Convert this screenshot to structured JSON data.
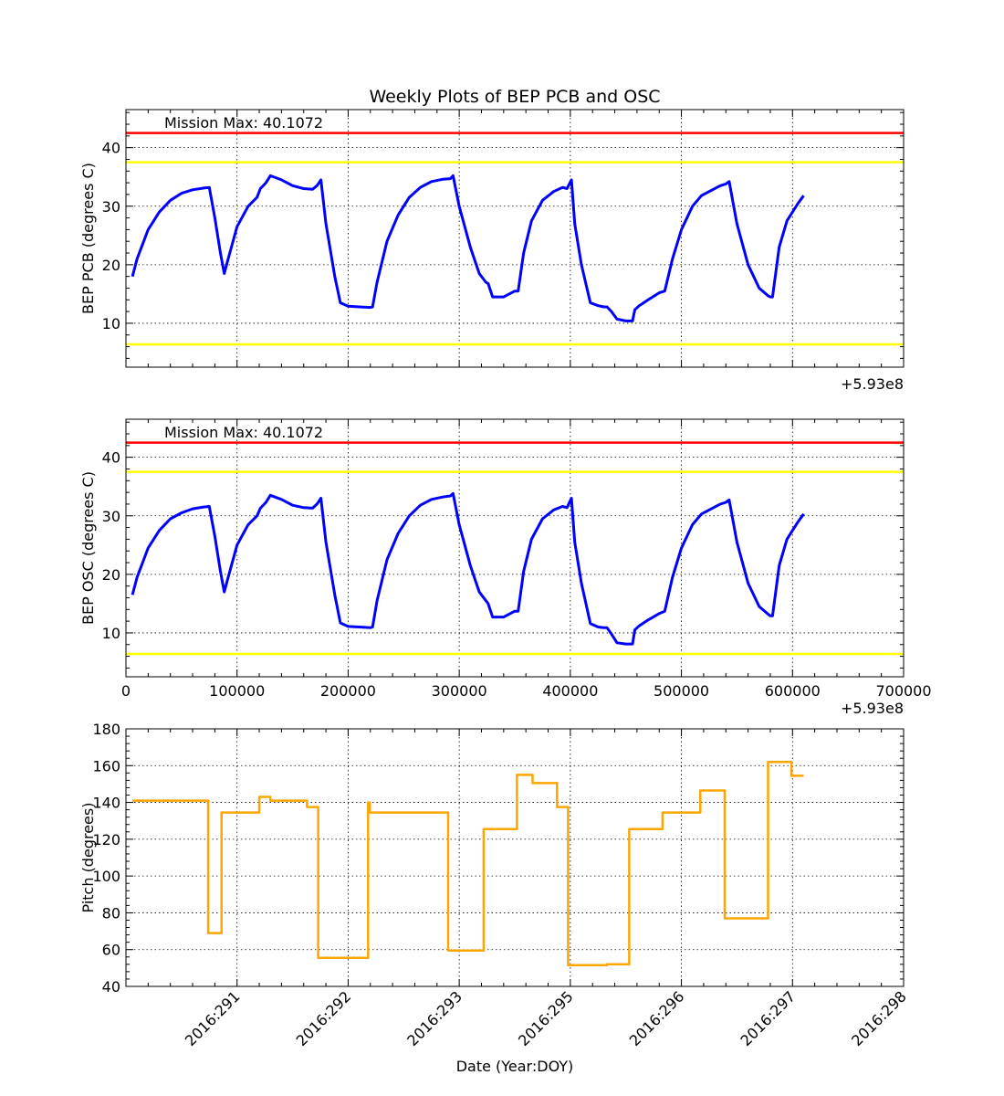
{
  "figure": {
    "title": "Weekly Plots of BEP PCB and OSC",
    "xlabel": "Date (Year:DOY)"
  },
  "chart_data": [
    {
      "type": "line",
      "ylabel": "BEP PCB (degrees C)",
      "xlim": [
        0,
        700000
      ],
      "ylim": [
        2.5,
        46.5
      ],
      "yticks": [
        10,
        20,
        30,
        40
      ],
      "x_offset_text": "+5.93e8",
      "grid": true,
      "annotation": "Mission Max: 40.1072",
      "limit_lines": [
        {
          "y": 42.5,
          "color": "#ff0000"
        },
        {
          "y": 37.5,
          "color": "#ffff00"
        },
        {
          "y": 6.4,
          "color": "#ffff00"
        }
      ],
      "series": [
        {
          "color": "#0000ff",
          "x": [
            5800,
            10000,
            20000,
            30000,
            40000,
            50000,
            60000,
            70000,
            75000,
            80000,
            85000,
            88500,
            92000,
            100000,
            110000,
            118000,
            121000,
            126000,
            130000,
            140000,
            150000,
            160000,
            168000,
            172000,
            175500,
            180000,
            188000,
            193000,
            200000,
            210000,
            220000,
            222000,
            226000,
            235000,
            245000,
            255000,
            265000,
            275000,
            285000,
            292000,
            294500,
            300000,
            310000,
            318000,
            324000,
            326000,
            330000,
            340000,
            350000,
            353000,
            358000,
            365000,
            375000,
            385000,
            393000,
            397000,
            401000,
            404000,
            410000,
            418000,
            425000,
            430000,
            433000,
            437000,
            442000,
            450000,
            456000,
            458000,
            462000,
            470000,
            480000,
            485000,
            492000,
            500000,
            510000,
            518000,
            525000,
            535000,
            540000,
            543000,
            550000,
            560000,
            570000,
            578000,
            580000,
            582000,
            588000,
            595000,
            605000,
            610000
          ],
          "y": [
            18,
            21,
            26,
            29,
            31,
            32.2,
            32.8,
            33.1,
            33.2,
            28,
            22,
            18.5,
            21,
            26.5,
            30,
            31.5,
            33,
            34,
            35.2,
            34.5,
            33.5,
            33,
            32.9,
            33.5,
            34.5,
            27,
            18,
            13.5,
            12.9,
            12.8,
            12.7,
            12.8,
            17,
            24,
            28.5,
            31.5,
            33.2,
            34.2,
            34.6,
            34.7,
            35.2,
            30,
            23,
            18.5,
            17,
            16.8,
            14.5,
            14.5,
            15.5,
            15.5,
            22,
            27.5,
            31,
            32.5,
            33.2,
            33,
            34.5,
            27,
            20,
            13.5,
            13,
            12.8,
            12.8,
            12,
            10.7,
            10.4,
            10.4,
            12.3,
            13,
            14,
            15.2,
            15.5,
            21,
            26,
            30,
            31.8,
            32.5,
            33.5,
            33.8,
            34.2,
            27,
            20,
            16,
            14.7,
            14.5,
            14.5,
            23,
            27.5,
            30.5,
            31.8
          ]
        }
      ]
    },
    {
      "type": "line",
      "ylabel": "BEP OSC (degrees C)",
      "xlim": [
        0,
        700000
      ],
      "ylim": [
        2.5,
        46.5
      ],
      "yticks": [
        10,
        20,
        30,
        40
      ],
      "xticks": [
        0,
        100000,
        200000,
        300000,
        400000,
        500000,
        600000,
        700000
      ],
      "xtick_labels": [
        "0",
        "100000",
        "200000",
        "300000",
        "400000",
        "500000",
        "600000",
        "700000"
      ],
      "x_offset_text": "+5.93e8",
      "grid": true,
      "annotation": "Mission Max: 40.1072",
      "limit_lines": [
        {
          "y": 42.5,
          "color": "#ff0000"
        },
        {
          "y": 37.5,
          "color": "#ffff00"
        },
        {
          "y": 6.4,
          "color": "#ffff00"
        }
      ],
      "series": [
        {
          "color": "#0000ff",
          "x": [
            5800,
            10000,
            20000,
            30000,
            40000,
            50000,
            60000,
            70000,
            75000,
            80000,
            85000,
            88500,
            92000,
            100000,
            110000,
            118000,
            121000,
            126000,
            130000,
            140000,
            150000,
            160000,
            168000,
            172000,
            175500,
            180000,
            188000,
            193000,
            200000,
            210000,
            220000,
            222000,
            226000,
            235000,
            245000,
            255000,
            265000,
            275000,
            285000,
            292000,
            294500,
            300000,
            310000,
            318000,
            324000,
            326000,
            330000,
            340000,
            350000,
            353000,
            358000,
            365000,
            375000,
            385000,
            393000,
            397000,
            401000,
            404000,
            410000,
            418000,
            425000,
            430000,
            433000,
            437000,
            442000,
            450000,
            456000,
            458000,
            462000,
            470000,
            480000,
            485000,
            492000,
            500000,
            510000,
            518000,
            525000,
            535000,
            540000,
            543000,
            550000,
            560000,
            570000,
            578000,
            580000,
            582000,
            588000,
            595000,
            605000,
            610000
          ],
          "y": [
            16.5,
            19.5,
            24.5,
            27.5,
            29.5,
            30.5,
            31.2,
            31.5,
            31.6,
            26.5,
            20.5,
            17,
            19.5,
            25,
            28.5,
            30,
            31.3,
            32.3,
            33.5,
            32.8,
            31.8,
            31.4,
            31.3,
            32,
            33,
            25.5,
            16.5,
            11.7,
            11.1,
            11,
            10.9,
            11,
            15.5,
            22.5,
            27,
            30,
            31.8,
            32.8,
            33.2,
            33.4,
            33.8,
            28.5,
            21.5,
            17,
            15.5,
            15,
            12.7,
            12.7,
            13.7,
            13.7,
            20.5,
            26,
            29.5,
            31,
            31.6,
            31.4,
            33,
            25.5,
            18.5,
            11.6,
            11,
            10.9,
            10.9,
            9.8,
            8.3,
            8.1,
            8.1,
            10.5,
            11.2,
            12.2,
            13.3,
            13.7,
            19.5,
            24.5,
            28.5,
            30.3,
            31,
            32,
            32.3,
            32.7,
            25.5,
            18.5,
            14.5,
            13.2,
            12.9,
            12.9,
            21.5,
            26,
            29,
            30.3
          ]
        }
      ]
    },
    {
      "type": "line",
      "ylabel": "Pitch (degrees)",
      "xlim": [
        0,
        700000
      ],
      "ylim": [
        40,
        180
      ],
      "yticks": [
        40,
        60,
        80,
        100,
        120,
        140,
        160,
        180
      ],
      "xticks": [
        100000,
        200000,
        300000,
        400000,
        500000,
        600000,
        700000
      ],
      "xtick_labels": [
        "2016:291",
        "2016:292",
        "2016:293",
        "2016:295",
        "2016:296",
        "2016:297",
        "2016:298"
      ],
      "grid": true,
      "series": [
        {
          "color": "#ffa500",
          "x": [
            5800,
            74000,
            74000,
            86000,
            86000,
            120000,
            120000,
            130000,
            130000,
            133000,
            133000,
            163000,
            163000,
            173000,
            173000,
            218000,
            218000,
            219500,
            219500,
            290000,
            290000,
            322000,
            322000,
            325000,
            325000,
            352000,
            352000,
            366000,
            366000,
            388000,
            388000,
            398000,
            398000,
            433000,
            433000,
            453000,
            453000,
            483000,
            483000,
            517000,
            517000,
            539000,
            539000,
            578000,
            578000,
            599000,
            599000,
            610000
          ],
          "y": [
            141,
            141,
            69,
            69,
            134.5,
            134.5,
            143,
            143,
            141,
            141,
            141,
            141,
            137.5,
            137.5,
            55.5,
            55.5,
            140,
            140,
            134.5,
            134.5,
            59.5,
            59.5,
            125.5,
            125.5,
            125.5,
            125.5,
            155,
            155,
            150.5,
            150.5,
            137.5,
            137.5,
            51.5,
            51.5,
            52,
            52,
            125.5,
            125.5,
            134.5,
            134.5,
            146.5,
            146.5,
            77,
            77,
            162,
            162,
            154.5,
            154.5
          ]
        }
      ]
    }
  ]
}
